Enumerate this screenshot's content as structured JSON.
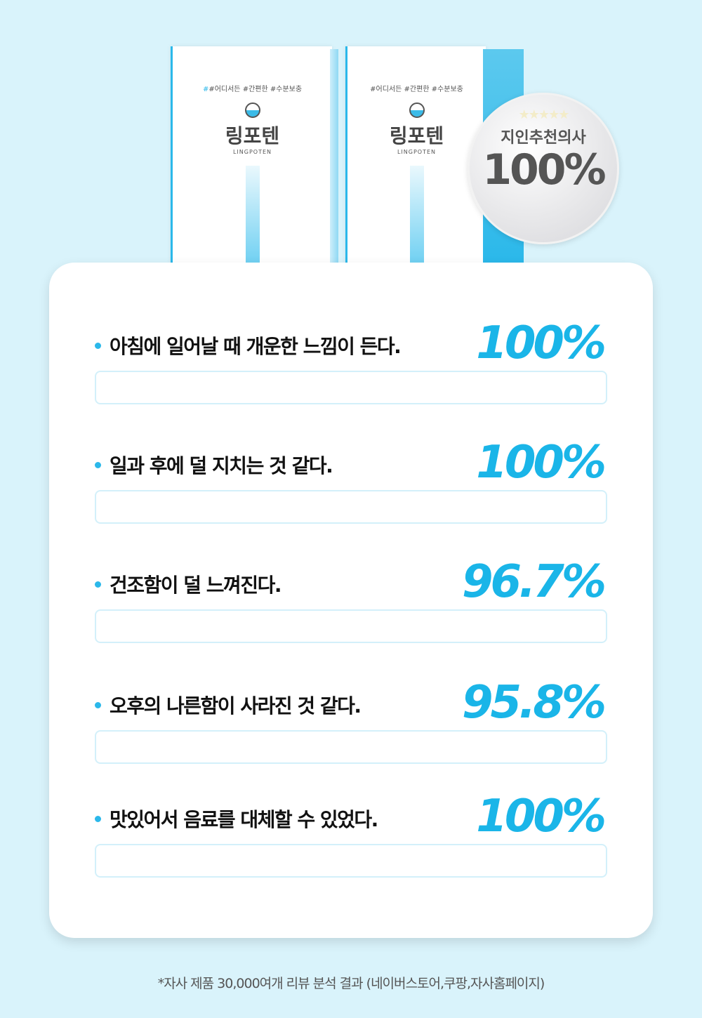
{
  "product": {
    "tags": [
      "#어디서든",
      "#간편한",
      "#수분보충"
    ],
    "brand": "링포텐",
    "brand_en": "LINGPOTEN"
  },
  "badge": {
    "title": "지인추천의사",
    "value": "100%"
  },
  "items": [
    {
      "question": "아침에 일어날 때 개운한 느낌이 든다.",
      "percent_label": "100%",
      "percent": 100
    },
    {
      "question": "일과 후에 덜 지치는 것 같다.",
      "percent_label": "100%",
      "percent": 100
    },
    {
      "question": "건조함이 덜 느껴진다.",
      "percent_label": "96.7%",
      "percent": 96.7
    },
    {
      "question": "오후의 나른함이 사라진 것 같다.",
      "percent_label": "95.8%",
      "percent": 95.8
    },
    {
      "question": "맛있어서 음료를 대체할 수 있었다.",
      "percent_label": "100%",
      "percent": 100
    }
  ],
  "footnote": "*자사 제품 30,000여개 리뷰 분석 결과 (네이버스토어,쿠팡,자사홈페이지)",
  "colors": {
    "accent": "#1ab5e8",
    "background": "#d9f3fb"
  }
}
